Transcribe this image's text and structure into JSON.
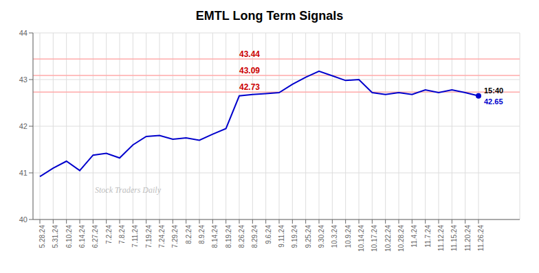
{
  "chart_data": {
    "type": "line",
    "title": "EMTL Long Term Signals",
    "watermark": "Stock Traders Daily",
    "categories": [
      "5.28.24",
      "5.31.24",
      "6.10.24",
      "6.14.24",
      "6.27.24",
      "7.2.24",
      "7.8.24",
      "7.11.24",
      "7.19.24",
      "7.24.24",
      "7.29.24",
      "8.2.24",
      "8.9.24",
      "8.14.24",
      "8.19.24",
      "8.26.24",
      "8.29.24",
      "9.6.24",
      "9.11.24",
      "9.19.24",
      "9.25.24",
      "9.30.24",
      "10.3.24",
      "10.9.24",
      "10.14.24",
      "10.17.24",
      "10.22.24",
      "10.28.24",
      "11.4.24",
      "11.7.24",
      "11.12.24",
      "11.15.24",
      "11.20.24",
      "11.26.24"
    ],
    "values": [
      40.92,
      41.1,
      41.25,
      41.05,
      41.38,
      41.42,
      41.32,
      41.6,
      41.78,
      41.8,
      41.72,
      41.75,
      41.7,
      41.83,
      41.95,
      42.65,
      42.68,
      42.7,
      42.72,
      42.9,
      43.05,
      43.18,
      43.08,
      42.98,
      43.0,
      42.72,
      42.68,
      42.72,
      42.68,
      42.78,
      42.72,
      42.78,
      42.72,
      42.65
    ],
    "color": "#0000cc",
    "hlines": [
      {
        "value": 42.73,
        "label": "42.73"
      },
      {
        "value": 43.09,
        "label": "43.09"
      },
      {
        "value": 43.44,
        "label": "43.44"
      }
    ],
    "hline_color": "#ffaaaa",
    "hline_label_color": "#cc0000",
    "end_label": {
      "time": "15:40",
      "value": "42.65"
    },
    "end_label_time_color": "#000000",
    "end_label_value_color": "#0000cc",
    "ylim": [
      40.0,
      44.0
    ],
    "yticks": [
      40,
      41,
      42,
      43,
      44
    ],
    "grid": true
  }
}
